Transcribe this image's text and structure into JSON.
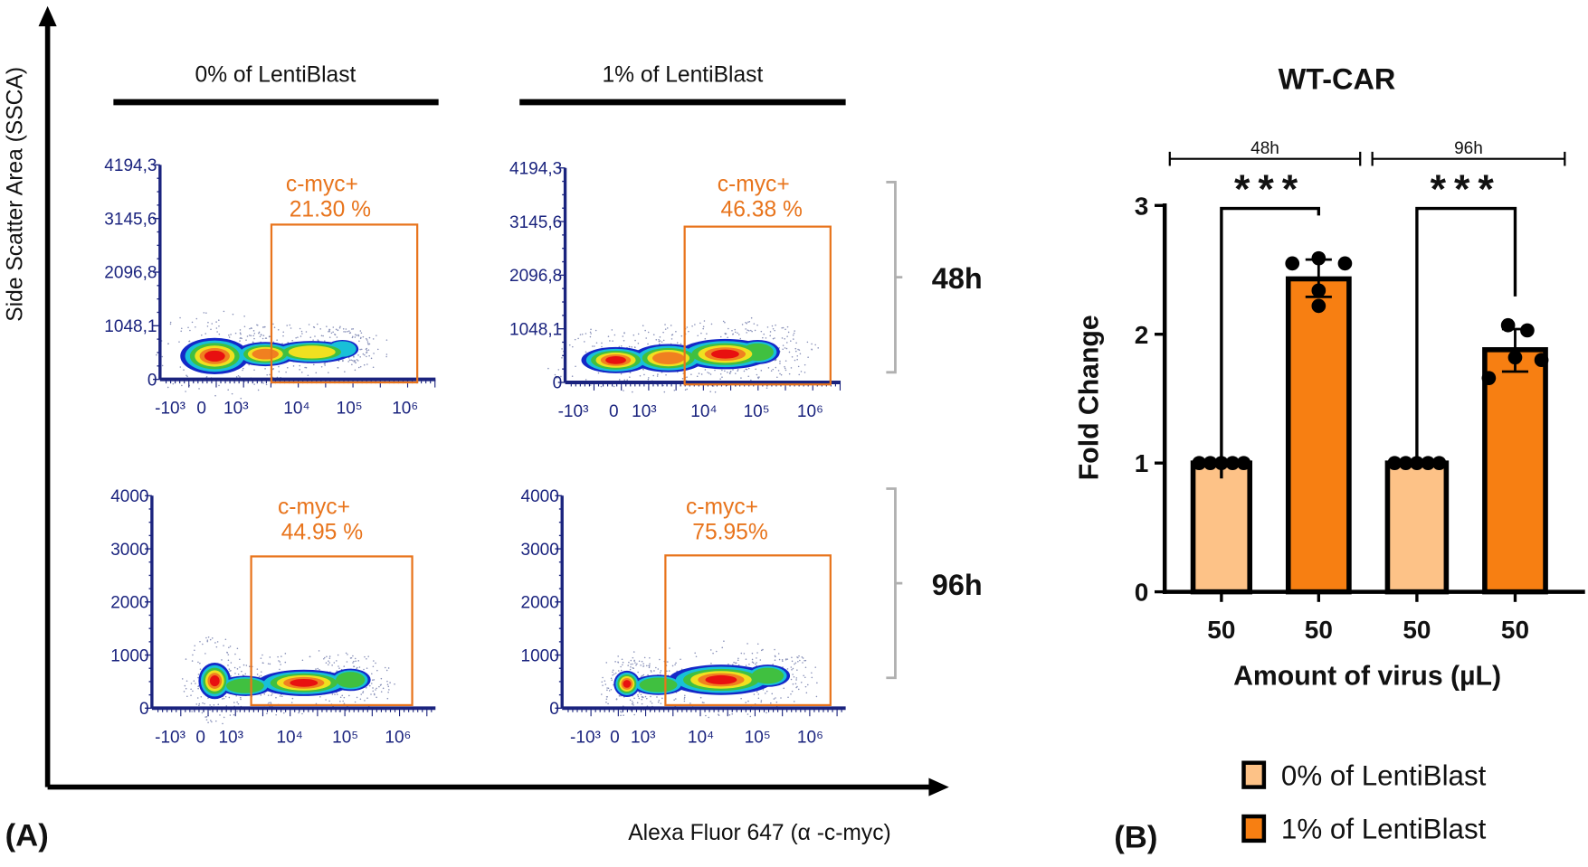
{
  "panel_a": {
    "label": "(A)",
    "y_axis_label": "Side Scatter Area (SSCA)",
    "x_axis_label": "Alexa Fluor 647 (α -c-myc)",
    "column_headers": [
      "0% of LentiBlast",
      "1% of LentiBlast"
    ],
    "row_labels": [
      "48h",
      "96h"
    ]
  },
  "panel_b": {
    "label": "(B)"
  },
  "colors": {
    "gate": "#e8741c",
    "axis_flow": "#1a237e",
    "bar_light": "#fdc287",
    "bar_dark": "#f77f12",
    "bracket_gray": "#b0b0b0"
  },
  "chart_data": [
    {
      "type": "scatter",
      "plot": "0% of LentiBlast, 48h",
      "density": true,
      "y_ticks": [
        "0",
        "1048,1",
        "2096,8",
        "3145,6",
        "4194,3"
      ],
      "x_ticks": [
        "-10³",
        "0",
        "10³",
        "10⁴",
        "10⁵",
        "10⁶"
      ],
      "gate_label": "c-myc+",
      "gate_value": "21.30 %"
    },
    {
      "type": "scatter",
      "plot": "1% of LentiBlast, 48h",
      "density": true,
      "y_ticks": [
        "0",
        "1048,1",
        "2096,8",
        "3145,6",
        "4194,3"
      ],
      "x_ticks": [
        "-10³",
        "0",
        "10³",
        "10⁴",
        "10⁵",
        "10⁶"
      ],
      "gate_label": "c-myc+",
      "gate_value": "46.38 %"
    },
    {
      "type": "scatter",
      "plot": "0% of LentiBlast, 96h",
      "density": true,
      "y_ticks": [
        "0",
        "1000",
        "2000",
        "3000",
        "4000"
      ],
      "x_ticks": [
        "-10³",
        "0",
        "10³",
        "10⁴",
        "10⁵",
        "10⁶"
      ],
      "gate_label": "c-myc+",
      "gate_value": "44.95 %"
    },
    {
      "type": "scatter",
      "plot": "1% of LentiBlast, 96h",
      "density": true,
      "y_ticks": [
        "0",
        "1000",
        "2000",
        "3000",
        "4000"
      ],
      "x_ticks": [
        "-10³",
        "0",
        "10³",
        "10⁴",
        "10⁵",
        "10⁶"
      ],
      "gate_label": "c-myc+",
      "gate_value": "75.95%"
    },
    {
      "type": "bar",
      "title": "WT-CAR",
      "xlabel": "Amount of virus (µL)",
      "ylabel": "Fold Change",
      "ylim": [
        0,
        3
      ],
      "y_ticks": [
        "0",
        "1",
        "2",
        "3"
      ],
      "categories": [
        "50",
        "50",
        "50",
        "50"
      ],
      "groups": [
        {
          "label": "48h",
          "bars": [
            0,
            1
          ]
        },
        {
          "label": "96h",
          "bars": [
            2,
            3
          ]
        }
      ],
      "series": [
        {
          "name": "0% of LentiBlast",
          "color": "#fdc287",
          "bars": [
            0,
            2
          ]
        },
        {
          "name": "1% of LentiBlast",
          "color": "#f77f12",
          "bars": [
            1,
            3
          ]
        }
      ],
      "values": [
        1.0,
        2.43,
        1.0,
        1.88
      ],
      "error_low": [
        1.0,
        2.29,
        1.0,
        1.71
      ],
      "error_high": [
        1.0,
        2.58,
        1.0,
        2.04
      ],
      "points": [
        [
          1,
          1,
          1,
          1,
          1
        ],
        [
          2.55,
          2.59,
          2.55,
          2.34,
          2.22
        ],
        [
          1,
          1,
          1,
          1,
          1
        ],
        [
          2.07,
          2.03,
          1.82,
          1.8,
          1.66
        ]
      ],
      "significance": [
        {
          "from": 0,
          "to": 1,
          "label": "***"
        },
        {
          "from": 2,
          "to": 3,
          "label": "***"
        }
      ],
      "legend_position": "bottom"
    }
  ]
}
